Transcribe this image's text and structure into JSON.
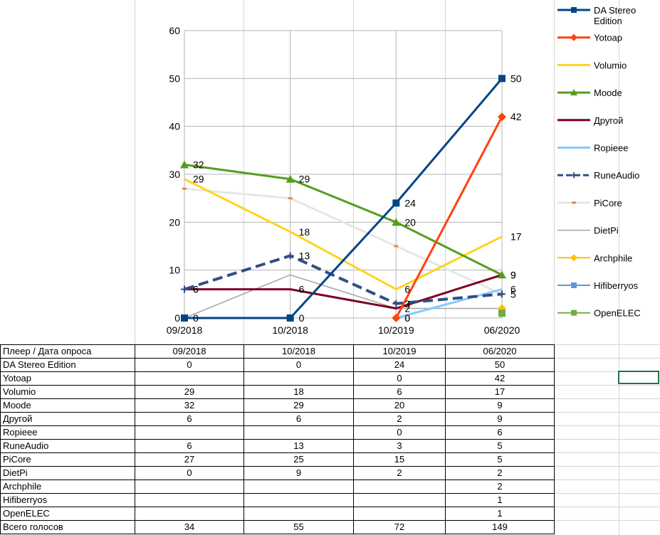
{
  "chart_data": {
    "type": "line",
    "categories": [
      "09/2018",
      "10/2018",
      "10/2019",
      "06/2020"
    ],
    "ylim": [
      0,
      60
    ],
    "yticks": [
      0,
      10,
      20,
      30,
      40,
      50,
      60
    ],
    "grid": true,
    "legend_position": "right",
    "series": [
      {
        "name": "DA Stereo Edition",
        "values": [
          0,
          0,
          24,
          50
        ],
        "color": "#004586",
        "width": 3,
        "marker": "square",
        "labels": true
      },
      {
        "name": "Yotoap",
        "values": [
          null,
          null,
          0,
          42
        ],
        "color": "#FF420E",
        "width": 3,
        "marker": "diamond",
        "labels": true
      },
      {
        "name": "Volumio",
        "values": [
          29,
          18,
          6,
          17
        ],
        "color": "#FFD320",
        "width": 3,
        "marker": "none",
        "labels": true
      },
      {
        "name": "Moode",
        "values": [
          32,
          29,
          20,
          9
        ],
        "color": "#579D1C",
        "width": 3,
        "marker": "triangle",
        "labels": true
      },
      {
        "name": "Другой",
        "values": [
          6,
          6,
          2,
          9
        ],
        "color": "#7E0021",
        "width": 3,
        "marker": "none",
        "labels": true
      },
      {
        "name": "Ropieee",
        "values": [
          null,
          null,
          0,
          6
        ],
        "color": "#83CAFF",
        "width": 3,
        "marker": "none",
        "labels": true
      },
      {
        "name": "RuneAudio",
        "values": [
          6,
          13,
          3,
          5
        ],
        "color": "#314E85",
        "width": 4,
        "marker": "cross",
        "dash": "14,7",
        "labels": true
      },
      {
        "name": "PiCore",
        "values": [
          27,
          25,
          15,
          5
        ],
        "color": "#E6E6E6",
        "width": 3,
        "marker": "dash",
        "marker_color": "#E8844B",
        "labels": false
      },
      {
        "name": "DietPi",
        "values": [
          0,
          9,
          2,
          2
        ],
        "color": "#A6A6A6",
        "width": 1.5,
        "marker": "none",
        "labels": false
      },
      {
        "name": "Archphile",
        "values": [
          null,
          null,
          null,
          2
        ],
        "color": "#FFC000",
        "width": 2,
        "marker": "diamond",
        "labels": false
      },
      {
        "name": "Hifiberryos",
        "values": [
          null,
          null,
          null,
          1
        ],
        "color": "#5B9BD5",
        "width": 2,
        "marker": "square",
        "labels": false
      },
      {
        "name": "OpenELEC",
        "values": [
          null,
          null,
          null,
          1
        ],
        "color": "#70AD47",
        "width": 2,
        "marker": "square",
        "labels": false
      }
    ]
  },
  "table": {
    "header": [
      "Плеер / Дата опроса",
      "09/2018",
      "10/2018",
      "10/2019",
      "06/2020"
    ],
    "rows": [
      [
        "DA Stereo Edition",
        "0",
        "0",
        "24",
        "50"
      ],
      [
        "Yotoap",
        "",
        "",
        "0",
        "42"
      ],
      [
        "Volumio",
        "29",
        "18",
        "6",
        "17"
      ],
      [
        "Moode",
        "32",
        "29",
        "20",
        "9"
      ],
      [
        "Другой",
        "6",
        "6",
        "2",
        "9"
      ],
      [
        "Ropieee",
        "",
        "",
        "0",
        "6"
      ],
      [
        "RuneAudio",
        "6",
        "13",
        "3",
        "5"
      ],
      [
        "PiCore",
        "27",
        "25",
        "15",
        "5"
      ],
      [
        "DietPi",
        "0",
        "9",
        "2",
        "2"
      ],
      [
        "Archphile",
        "",
        "",
        "",
        "2"
      ],
      [
        "Hifiberryos",
        "",
        "",
        "",
        "1"
      ],
      [
        "OpenELEC",
        "",
        "",
        "",
        "1"
      ],
      [
        "Всего голосов",
        "34",
        "55",
        "72",
        "149"
      ]
    ]
  }
}
